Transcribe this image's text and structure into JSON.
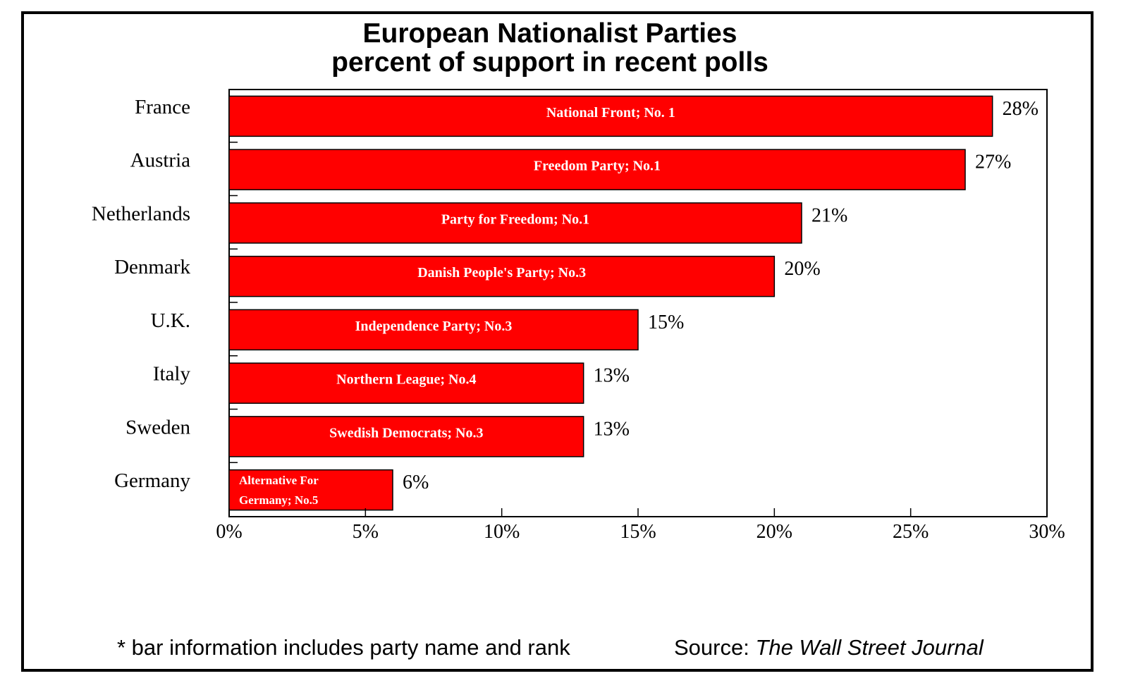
{
  "chart_data": {
    "type": "bar",
    "orientation": "horizontal",
    "title": "European Nationalist Parties",
    "subtitle": "percent of support in recent polls",
    "categories": [
      "France",
      "Austria",
      "Netherlands",
      "Denmark",
      "U.K.",
      "Italy",
      "Sweden",
      "Germany"
    ],
    "values": [
      28,
      27,
      21,
      20,
      15,
      13,
      13,
      6
    ],
    "value_labels": [
      "28%",
      "27%",
      "21%",
      "20%",
      "15%",
      "13%",
      "13%",
      "6%"
    ],
    "bar_labels": [
      [
        "National Front; No. 1"
      ],
      [
        "Freedom Party; No.1"
      ],
      [
        "Party for Freedom; No.1"
      ],
      [
        "Danish People's Party; No.3"
      ],
      [
        "Independence Party; No.3"
      ],
      [
        "Northern League; No.4"
      ],
      [
        "Swedish Democrats; No.3"
      ],
      [
        "Alternative For",
        "Germany; No.5"
      ]
    ],
    "xlim": [
      0,
      30
    ],
    "xticks": [
      0,
      5,
      10,
      15,
      20,
      25,
      30
    ],
    "xtick_labels": [
      "0%",
      "5%",
      "10%",
      "15%",
      "20%",
      "25%",
      "30%"
    ],
    "xlabel": "",
    "ylabel": "",
    "bar_color": "#ff0000",
    "grid": false,
    "legend": "none"
  },
  "footer": {
    "note": "* bar information includes party name and rank",
    "source_prefix": "Source: ",
    "source_name": "The Wall Street Journal"
  }
}
